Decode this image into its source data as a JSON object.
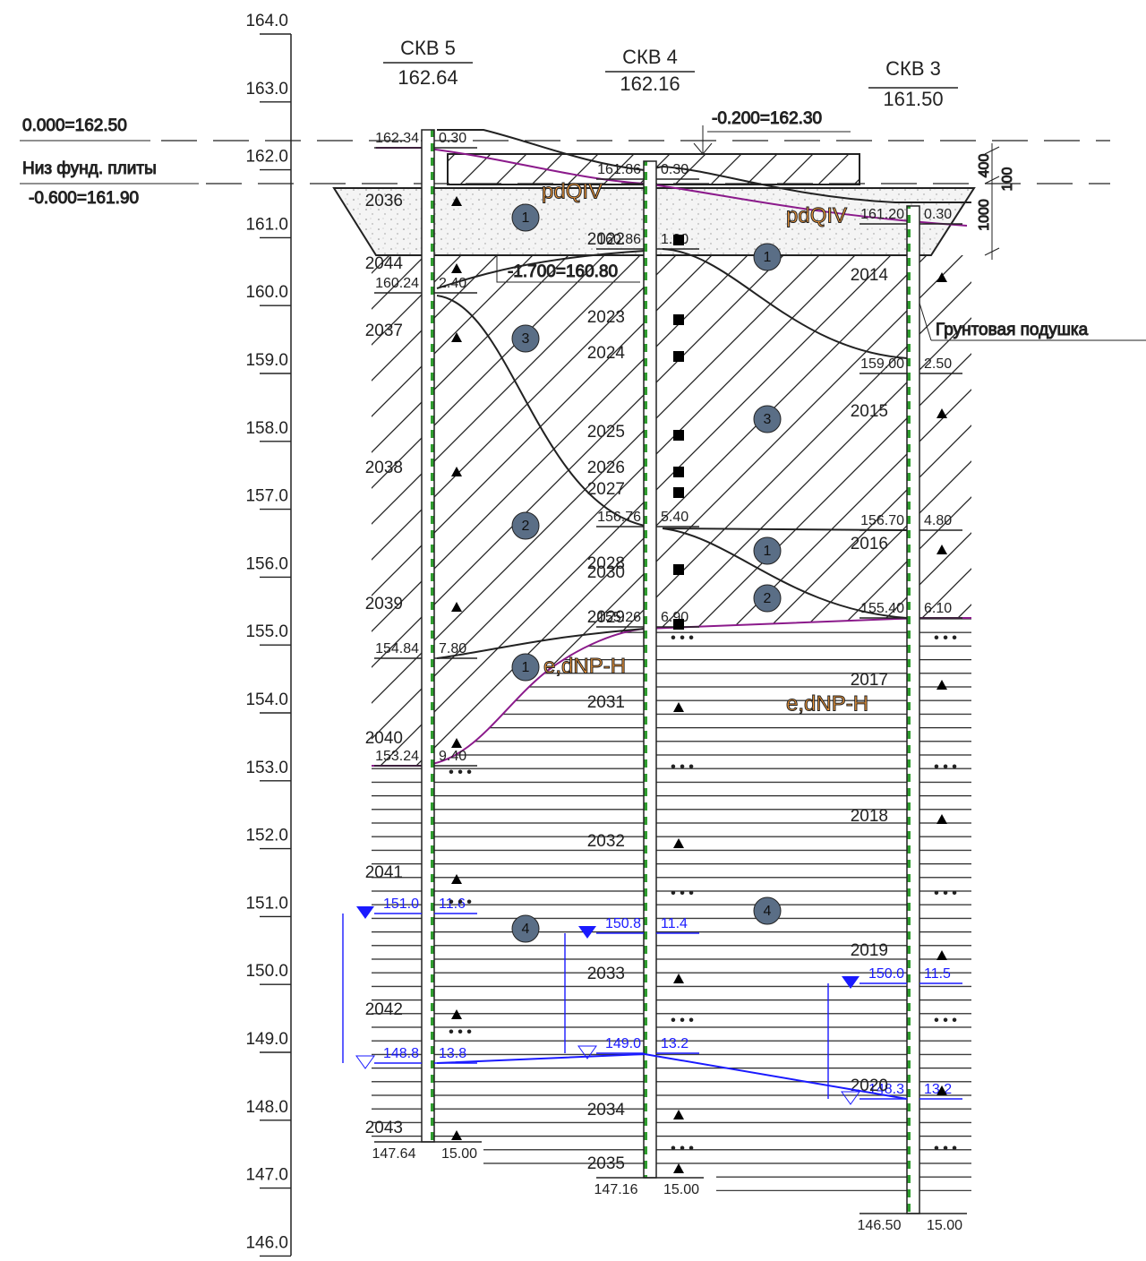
{
  "elevation_axis": [
    "164.0",
    "163.0",
    "162.0",
    "161.0",
    "160.0",
    "159.0",
    "158.0",
    "157.0",
    "156.0",
    "155.0",
    "154.0",
    "153.0",
    "152.0",
    "151.0",
    "150.0",
    "149.0",
    "148.0",
    "147.0",
    "146.0"
  ],
  "levels": {
    "zero": "0.000=162.50",
    "foundation_bottom_label": "Низ фунд. плиты",
    "foundation_bottom": "-0.600=161.90",
    "floor": "-0.200=162.30",
    "pad_bottom": "-1.700=160.80",
    "pad_label": "Грунтовая подушка"
  },
  "dimensions": [
    "400",
    "100",
    "1000"
  ],
  "soil_labels": [
    "pdQIV",
    "pdQIV",
    "e,dNP-H",
    "e,dNP-H"
  ],
  "layer_numbers": [
    "1",
    "3",
    "2",
    "1",
    "4",
    "1",
    "3",
    "1",
    "2",
    "4"
  ],
  "boreholes": [
    {
      "name": "СКВ 5",
      "elevation": "162.64",
      "top": {
        "elev": "162.34",
        "depth": "0.30"
      },
      "contacts": [
        {
          "elev": "160.24",
          "depth": "2.40"
        },
        {
          "elev": "154.84",
          "depth": "7.80"
        },
        {
          "elev": "153.24",
          "depth": "9.40"
        }
      ],
      "water_appeared": {
        "elev": "151.0",
        "depth": "11.6"
      },
      "water_steady": {
        "elev": "148.8",
        "depth": "13.8"
      },
      "bottom": {
        "elev": "147.64",
        "depth": "15.00"
      },
      "samples": [
        "2036",
        "2044",
        "2037",
        "2038",
        "2039",
        "2040",
        "2041",
        "2042",
        "2043"
      ]
    },
    {
      "name": "СКВ 4",
      "elevation": "162.16",
      "top": {
        "elev": "161.86",
        "depth": "0.30"
      },
      "contacts": [
        {
          "elev": "160.86",
          "depth": "1.30"
        },
        {
          "elev": "156.76",
          "depth": "5.40"
        },
        {
          "elev": "155.26",
          "depth": "6.90"
        }
      ],
      "water_appeared": {
        "elev": "150.8",
        "depth": "11.4"
      },
      "water_steady": {
        "elev": "149.0",
        "depth": "13.2"
      },
      "bottom": {
        "elev": "147.16",
        "depth": "15.00"
      },
      "samples": [
        "2022",
        "2023",
        "2024",
        "2025",
        "2026",
        "2027",
        "2028",
        "2030",
        "2029",
        "2031",
        "2032",
        "2033",
        "2034",
        "2035"
      ]
    },
    {
      "name": "СКВ 3",
      "elevation": "161.50",
      "top": {
        "elev": "161.20",
        "depth": "0.30"
      },
      "contacts": [
        {
          "elev": "159.00",
          "depth": "2.50"
        },
        {
          "elev": "156.70",
          "depth": "4.80"
        },
        {
          "elev": "155.40",
          "depth": "6.10"
        }
      ],
      "water_appeared": {
        "elev": "150.0",
        "depth": "11.5"
      },
      "water_steady": {
        "elev": "148.3",
        "depth": "13.2"
      },
      "bottom": {
        "elev": "146.50",
        "depth": "15.00"
      },
      "samples": [
        "2014",
        "2015",
        "2016",
        "2017",
        "2018",
        "2019",
        "2020"
      ]
    }
  ]
}
